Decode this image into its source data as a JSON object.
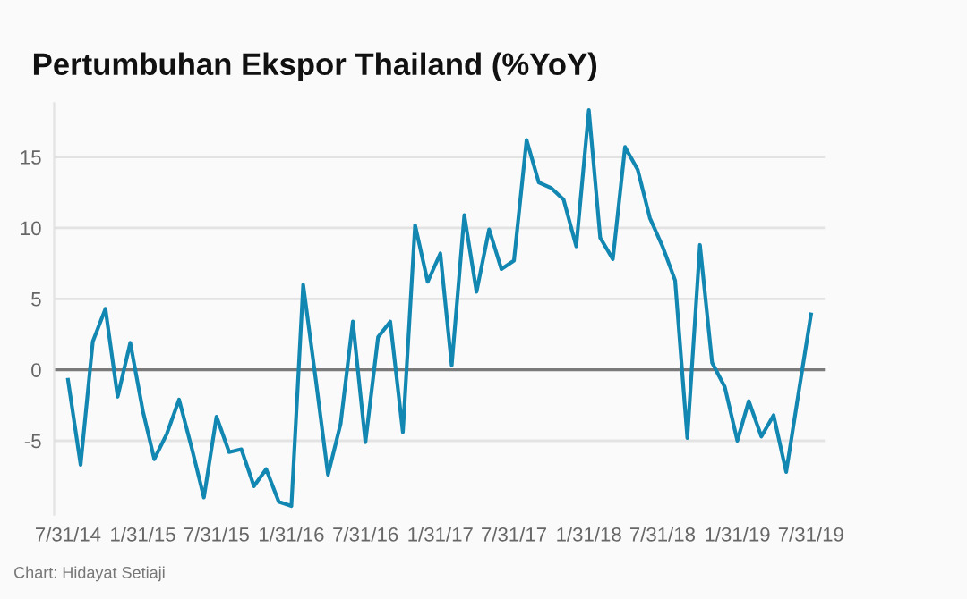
{
  "chart_data": {
    "type": "line",
    "title": "Pertumbuhan Ekspor Thailand (%YoY)",
    "x": [
      "2014-07-31",
      "2014-08-31",
      "2014-09-30",
      "2014-10-31",
      "2014-11-30",
      "2014-12-31",
      "2015-01-31",
      "2015-02-28",
      "2015-03-31",
      "2015-04-30",
      "2015-05-31",
      "2015-06-30",
      "2015-07-31",
      "2015-08-31",
      "2015-09-30",
      "2015-10-31",
      "2015-11-30",
      "2015-12-31",
      "2016-01-31",
      "2016-02-29",
      "2016-03-31",
      "2016-04-30",
      "2016-05-31",
      "2016-06-30",
      "2016-07-31",
      "2016-08-31",
      "2016-09-30",
      "2016-10-31",
      "2016-11-30",
      "2016-12-31",
      "2017-01-31",
      "2017-02-28",
      "2017-03-31",
      "2017-04-30",
      "2017-05-31",
      "2017-06-30",
      "2017-07-31",
      "2017-08-31",
      "2017-09-30",
      "2017-10-31",
      "2017-11-30",
      "2017-12-31",
      "2018-01-31",
      "2018-02-28",
      "2018-03-31",
      "2018-04-30",
      "2018-05-31",
      "2018-06-30",
      "2018-07-31",
      "2018-08-31",
      "2018-09-30",
      "2018-10-31",
      "2018-11-30",
      "2018-12-31",
      "2019-01-31",
      "2019-02-28",
      "2019-03-31",
      "2019-04-30",
      "2019-05-31",
      "2019-06-30",
      "2019-07-31"
    ],
    "series": [
      {
        "color": "#1287b1",
        "values": [
          -0.7,
          -6.7,
          2.0,
          4.3,
          -1.9,
          1.9,
          -2.9,
          -6.3,
          -4.5,
          -2.1,
          -5.5,
          -9.0,
          -3.3,
          -5.8,
          -5.6,
          -8.2,
          -7.0,
          -9.3,
          -9.6,
          6.0,
          -0.7,
          -7.4,
          -3.8,
          3.4,
          -5.1,
          2.3,
          3.4,
          -4.4,
          10.2,
          6.2,
          8.2,
          0.3,
          10.9,
          5.5,
          9.9,
          7.1,
          7.7,
          16.2,
          13.2,
          12.8,
          12.0,
          8.7,
          18.3,
          9.3,
          7.8,
          15.7,
          14.1,
          10.7,
          8.7,
          6.3,
          -4.8,
          8.8,
          0.5,
          -1.2,
          -5.0,
          -2.2,
          -4.7,
          -3.2,
          -7.2,
          -1.7,
          3.9
        ]
      }
    ],
    "xlim": [
      "2014-06-27",
      "2019-09-03"
    ],
    "xticks": [
      {
        "value": "2014-07-31",
        "label": "7/31/14"
      },
      {
        "value": "2015-01-31",
        "label": "1/31/15"
      },
      {
        "value": "2015-07-31",
        "label": "7/31/15"
      },
      {
        "value": "2016-01-31",
        "label": "1/31/16"
      },
      {
        "value": "2016-07-31",
        "label": "7/31/16"
      },
      {
        "value": "2017-01-31",
        "label": "1/31/17"
      },
      {
        "value": "2017-07-31",
        "label": "7/31/17"
      },
      {
        "value": "2018-01-31",
        "label": "1/31/18"
      },
      {
        "value": "2018-07-31",
        "label": "7/31/18"
      },
      {
        "value": "2019-01-31",
        "label": "1/31/19"
      },
      {
        "value": "2019-07-31",
        "label": "7/31/19"
      }
    ],
    "ylim": [
      -10.2,
      18.8
    ],
    "yticks": [
      -5,
      0,
      5,
      10,
      15
    ],
    "grid": "y",
    "ref_lines": [
      {
        "axis": "y",
        "value": 0,
        "color": "#7a7a7a"
      }
    ],
    "annotations": [
      "Chart: Hidayat Setiaji"
    ]
  }
}
